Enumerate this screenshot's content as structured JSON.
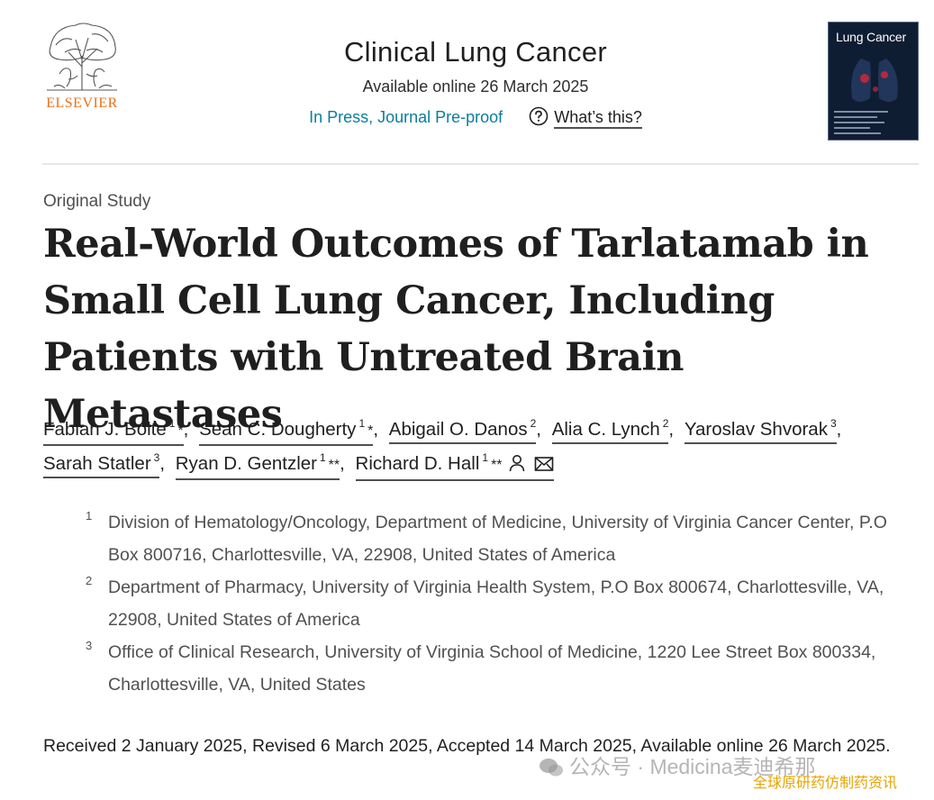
{
  "publisher": {
    "name": "ELSEVIER",
    "brand_color": "#e9711c"
  },
  "journal": {
    "title": "Clinical Lung Cancer",
    "available_online": "Available online 26 March 2025",
    "status_link": "In Press, Journal Pre-proof",
    "help_link": "What’s this?",
    "cover_title": "Lung Cancer",
    "link_color": "#0c7d9b"
  },
  "article": {
    "type": "Original Study",
    "title": "Real-World Outcomes of Tarlatamab in Small Cell Lung Cancer, Including Patients with Untreated Brain Metastases",
    "authors": [
      {
        "name": "Fabian J. Bolte",
        "sup": "1",
        "mark": "*"
      },
      {
        "name": "Sean C. Dougherty",
        "sup": "1",
        "mark": "*"
      },
      {
        "name": "Abigail O. Danos",
        "sup": "2",
        "mark": ""
      },
      {
        "name": "Alia C. Lynch",
        "sup": "2",
        "mark": ""
      },
      {
        "name": "Yaroslav Shvorak",
        "sup": "3",
        "mark": ""
      },
      {
        "name": "Sarah Statler",
        "sup": "3",
        "mark": ""
      },
      {
        "name": "Ryan D. Gentzler",
        "sup": "1",
        "mark": "**"
      },
      {
        "name": "Richard D. Hall",
        "sup": "1",
        "mark": "**"
      }
    ],
    "affiliations": [
      {
        "sup": "1",
        "text": "Division of Hematology/Oncology, Department of Medicine, University of Virginia Cancer Center, P.O Box 800716, Charlottesville, VA, 22908, United States of America"
      },
      {
        "sup": "2",
        "text": "Department of Pharmacy, University of Virginia Health System, P.O Box 800674, Charlottesville, VA, 22908, United States of America"
      },
      {
        "sup": "3",
        "text": "Office of Clinical Research, University of Virginia School of Medicine, 1220 Lee Street Box 800334, Charlottesville, VA, United States"
      }
    ],
    "history": "Received 2 January 2025, Revised 6 March 2025, Accepted 14 March 2025, Available online 26 March 2025."
  },
  "watermark": {
    "main": "公众号 · Medicina麦迪希那",
    "sub": "全球原研药仿制药资讯"
  }
}
